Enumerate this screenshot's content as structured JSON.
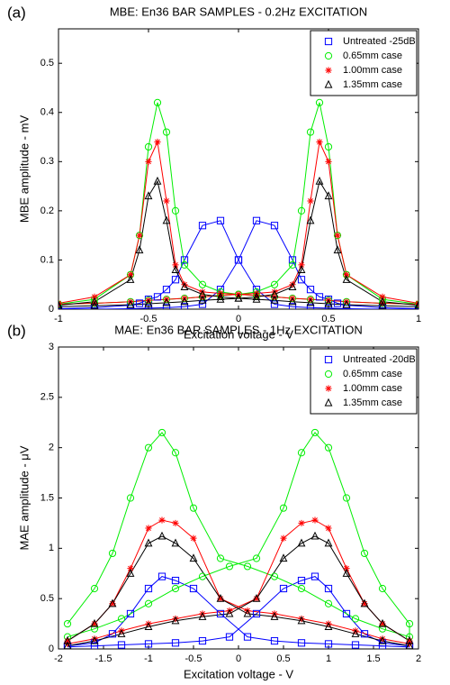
{
  "chart_data": [
    {
      "type": "line",
      "panel_label": "(a)",
      "title": "MBE: En36 BAR SAMPLES - 0.2Hz EXCITATION",
      "x_label": "Excitation voltage - V",
      "y_label": "MBE amplitude - mV",
      "xlim": [
        -1,
        1
      ],
      "ylim": [
        0,
        0.57
      ],
      "xticks": [
        -1,
        -0.5,
        0,
        0.5,
        1
      ],
      "yticks": [
        0,
        0.1,
        0.2,
        0.3,
        0.4,
        0.5
      ],
      "legend": "upper right",
      "x": [
        -1,
        -0.8,
        -0.6,
        -0.5,
        -0.4,
        -0.3,
        -0.2,
        -0.1,
        0,
        0.1,
        0.2,
        0.3,
        0.35,
        0.4,
        0.45,
        0.5,
        0.55,
        0.6,
        0.8,
        1,
        1,
        0.8,
        0.6,
        0.5,
        0.4,
        0.3,
        0.2,
        0.1,
        0,
        -0.1,
        -0.2,
        -0.3,
        -0.35,
        -0.4,
        -0.45,
        -0.5,
        -0.55,
        -0.6,
        -0.8,
        -1
      ],
      "series": [
        {
          "name": "Untreated -25dB",
          "color": "#0000ff",
          "marker": "square",
          "values": [
            0,
            0,
            0.001,
            0.002,
            0.003,
            0.005,
            0.01,
            0.04,
            0.1,
            0.18,
            0.17,
            0.1,
            0.06,
            0.04,
            0.025,
            0.02,
            0.012,
            0.008,
            0.003,
            0.001,
            0,
            0,
            0.001,
            0.002,
            0.003,
            0.005,
            0.01,
            0.04,
            0.1,
            0.18,
            0.17,
            0.1,
            0.06,
            0.04,
            0.025,
            0.02,
            0.012,
            0.008,
            0.003,
            0.001
          ]
        },
        {
          "name": "0.65mm case",
          "color": "#00ee00",
          "marker": "circle",
          "values": [
            0.01,
            0.012,
            0.015,
            0.018,
            0.02,
            0.022,
            0.025,
            0.028,
            0.03,
            0.035,
            0.05,
            0.09,
            0.2,
            0.36,
            0.42,
            0.33,
            0.15,
            0.07,
            0.02,
            0.01,
            0.01,
            0.012,
            0.015,
            0.018,
            0.02,
            0.022,
            0.025,
            0.028,
            0.03,
            0.035,
            0.05,
            0.09,
            0.2,
            0.36,
            0.42,
            0.33,
            0.15,
            0.07,
            0.02,
            0.01
          ]
        },
        {
          "name": "1.00mm case",
          "color": "#ff0000",
          "marker": "star",
          "values": [
            0.01,
            0.012,
            0.015,
            0.018,
            0.02,
            0.022,
            0.025,
            0.028,
            0.03,
            0.032,
            0.035,
            0.05,
            0.09,
            0.22,
            0.34,
            0.3,
            0.15,
            0.07,
            0.025,
            0.012,
            0.01,
            0.012,
            0.015,
            0.018,
            0.02,
            0.022,
            0.025,
            0.028,
            0.03,
            0.032,
            0.035,
            0.05,
            0.09,
            0.22,
            0.34,
            0.3,
            0.15,
            0.07,
            0.025,
            0.012
          ]
        },
        {
          "name": "1.35mm case",
          "color": "#000000",
          "marker": "triangle",
          "values": [
            0.005,
            0.007,
            0.009,
            0.011,
            0.013,
            0.015,
            0.018,
            0.02,
            0.022,
            0.025,
            0.03,
            0.045,
            0.08,
            0.18,
            0.26,
            0.23,
            0.12,
            0.06,
            0.015,
            0.008,
            0.005,
            0.007,
            0.009,
            0.011,
            0.013,
            0.015,
            0.018,
            0.02,
            0.022,
            0.025,
            0.03,
            0.045,
            0.08,
            0.18,
            0.26,
            0.23,
            0.12,
            0.06,
            0.015,
            0.008
          ]
        }
      ]
    },
    {
      "type": "line",
      "panel_label": "(b)",
      "title": "MAE: En36 BAR SAMPLES - 1Hz EXCITATION",
      "x_label": "Excitation voltage - V",
      "y_label": "MAE amplitude - μV",
      "xlim": [
        -2,
        2
      ],
      "ylim": [
        0,
        3
      ],
      "xticks": [
        -2,
        -1.5,
        -1,
        -0.5,
        0,
        0.5,
        1,
        1.5,
        2
      ],
      "yticks": [
        0,
        0.5,
        1,
        1.5,
        2,
        2.5,
        3
      ],
      "legend": "upper right",
      "x": [
        -1.9,
        -1.6,
        -1.3,
        -1,
        -0.7,
        -0.4,
        -0.1,
        0.2,
        0.5,
        0.7,
        0.85,
        1,
        1.2,
        1.4,
        1.6,
        1.9,
        1.9,
        1.6,
        1.3,
        1,
        0.7,
        0.4,
        0.1,
        -0.2,
        -0.5,
        -0.7,
        -0.85,
        -1,
        -1.2,
        -1.4,
        -1.6,
        -1.9
      ],
      "series": [
        {
          "name": "Untreated -20dB",
          "color": "#0000ff",
          "marker": "square",
          "values": [
            0.02,
            0.03,
            0.04,
            0.05,
            0.06,
            0.08,
            0.12,
            0.35,
            0.6,
            0.68,
            0.72,
            0.6,
            0.35,
            0.15,
            0.06,
            0.03,
            0.02,
            0.03,
            0.04,
            0.05,
            0.06,
            0.08,
            0.12,
            0.35,
            0.6,
            0.68,
            0.72,
            0.6,
            0.35,
            0.15,
            0.06,
            0.03
          ]
        },
        {
          "name": "0.65mm case",
          "color": "#00ee00",
          "marker": "circle",
          "values": [
            0.12,
            0.2,
            0.3,
            0.45,
            0.6,
            0.72,
            0.82,
            0.9,
            1.4,
            1.95,
            2.15,
            2,
            1.5,
            0.95,
            0.6,
            0.25,
            0.12,
            0.2,
            0.3,
            0.45,
            0.6,
            0.72,
            0.82,
            0.9,
            1.4,
            1.95,
            2.15,
            2,
            1.5,
            0.95,
            0.6,
            0.25
          ]
        },
        {
          "name": "1.00mm case",
          "color": "#ff0000",
          "marker": "star",
          "values": [
            0.05,
            0.1,
            0.18,
            0.25,
            0.3,
            0.35,
            0.38,
            0.5,
            1.1,
            1.25,
            1.28,
            1.2,
            0.8,
            0.45,
            0.25,
            0.08,
            0.05,
            0.1,
            0.18,
            0.25,
            0.3,
            0.35,
            0.38,
            0.5,
            1.1,
            1.25,
            1.28,
            1.2,
            0.8,
            0.45,
            0.25,
            0.08
          ]
        },
        {
          "name": "1.35mm case",
          "color": "#000000",
          "marker": "triangle",
          "values": [
            0.03,
            0.08,
            0.15,
            0.22,
            0.28,
            0.32,
            0.35,
            0.5,
            0.9,
            1.05,
            1.12,
            1.05,
            0.75,
            0.45,
            0.25,
            0.08,
            0.03,
            0.08,
            0.15,
            0.22,
            0.28,
            0.32,
            0.35,
            0.5,
            0.9,
            1.05,
            1.12,
            1.05,
            0.75,
            0.45,
            0.25,
            0.08
          ]
        }
      ]
    }
  ]
}
